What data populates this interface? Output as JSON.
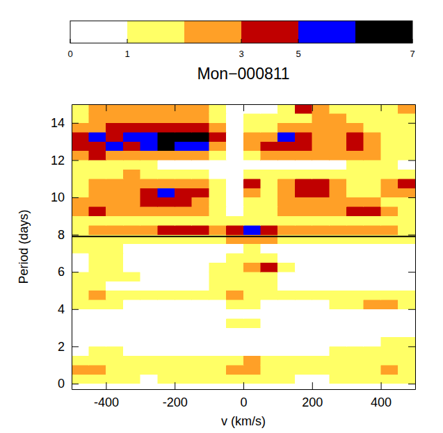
{
  "chart_data": {
    "type": "heatmap",
    "title": "Mon−000811",
    "x_label": "v (km/s)",
    "y_label": "Period (days)",
    "xlim": [
      -500,
      500
    ],
    "ylim": [
      -0.3,
      15
    ],
    "xticks": [
      -400,
      -200,
      0,
      200,
      400
    ],
    "yticks": [
      0,
      2,
      4,
      6,
      8,
      10,
      12,
      14
    ],
    "hline": 7.9,
    "x": [
      -475,
      -425,
      -375,
      -325,
      -275,
      -225,
      -175,
      -125,
      -75,
      -25,
      25,
      75,
      125,
      175,
      225,
      275,
      325,
      375,
      425,
      475
    ],
    "y": [
      0.25,
      0.75,
      1.25,
      1.75,
      2.25,
      2.75,
      3.25,
      3.75,
      4.25,
      4.75,
      5.25,
      5.75,
      6.25,
      6.75,
      7.25,
      7.75,
      8.25,
      8.75,
      9.25,
      9.75,
      10.25,
      10.75,
      11.25,
      11.75,
      12.25,
      12.75,
      13.25,
      13.75,
      14.25,
      14.75
    ],
    "z": [
      [
        1.5,
        1.5,
        1.5,
        1.5,
        0.5,
        1.5,
        1.5,
        1.5,
        1.5,
        1.5,
        1.5,
        1.5,
        1.5,
        0.5,
        0.5,
        1.5,
        1.5,
        1.5,
        1.5,
        1.5
      ],
      [
        2.5,
        2.5,
        1.5,
        1.5,
        1.5,
        1.5,
        1.5,
        1.5,
        1.5,
        2.5,
        2.5,
        1.5,
        1.5,
        1.5,
        1.5,
        1.5,
        1.5,
        1.5,
        2.5,
        1.5
      ],
      [
        1.5,
        1.5,
        1.5,
        1.5,
        1.5,
        1.5,
        1.5,
        1.5,
        1.5,
        1.5,
        2.5,
        1.5,
        1.5,
        1.5,
        1.5,
        1.5,
        1.5,
        1.5,
        1.5,
        1.5
      ],
      [
        0.5,
        1.5,
        1.5,
        0.5,
        0.5,
        0.5,
        0.5,
        0.5,
        0.5,
        0.5,
        0.5,
        0.5,
        0.5,
        0.5,
        0.5,
        1.5,
        1.5,
        1.5,
        1.5,
        1.5
      ],
      [
        0.5,
        0.5,
        0.5,
        0.5,
        0.5,
        0.5,
        0.5,
        0.5,
        0.5,
        0.5,
        0.5,
        0.5,
        0.5,
        0.5,
        0.5,
        0.5,
        0.5,
        0.5,
        1.5,
        1.5
      ],
      [
        0.5,
        0.5,
        0.5,
        0.5,
        0.5,
        0.5,
        0.5,
        0.5,
        0.5,
        0.5,
        0.5,
        0.5,
        0.5,
        0.5,
        0.5,
        0.5,
        0.5,
        0.5,
        0.5,
        0.5
      ],
      [
        0.5,
        0.5,
        0.5,
        0.5,
        0.5,
        0.5,
        0.5,
        0.5,
        0.5,
        1.5,
        1.5,
        0.5,
        0.5,
        0.5,
        0.5,
        0.5,
        0.5,
        0.5,
        0.5,
        0.5
      ],
      [
        0.5,
        0.5,
        0.5,
        0.5,
        0.5,
        0.5,
        0.5,
        0.5,
        0.5,
        0.5,
        0.5,
        0.5,
        0.5,
        0.5,
        0.5,
        0.5,
        0.5,
        0.5,
        0.5,
        0.5
      ],
      [
        1.5,
        1.5,
        1.5,
        0.5,
        0.5,
        0.5,
        0.5,
        0.5,
        0.5,
        1.5,
        1.5,
        0.5,
        0.5,
        0.5,
        0.5,
        1.5,
        1.5,
        2.5,
        2.5,
        1.5
      ],
      [
        1.5,
        2.5,
        1.5,
        1.5,
        1.5,
        1.5,
        1.5,
        1.5,
        1.5,
        2.5,
        1.5,
        1.5,
        1.5,
        1.5,
        1.5,
        1.5,
        1.5,
        1.5,
        1.5,
        1.5
      ],
      [
        1.5,
        1.5,
        0.5,
        0.5,
        0.5,
        0.5,
        0.5,
        0.5,
        1.5,
        1.5,
        1.5,
        1.5,
        0.5,
        0.5,
        0.5,
        0.5,
        0.5,
        0.5,
        0.5,
        0.5
      ],
      [
        1.5,
        1.5,
        1.5,
        1.5,
        0.5,
        0.5,
        0.5,
        0.5,
        1.5,
        1.5,
        1.5,
        1.5,
        0.5,
        0.5,
        0.5,
        0.5,
        0.5,
        0.5,
        0.5,
        0.5
      ],
      [
        0.5,
        1.5,
        1.5,
        0.5,
        0.5,
        0.5,
        0.5,
        0.5,
        1.5,
        1.5,
        2.5,
        4,
        1.5,
        0.5,
        0.5,
        0.5,
        0.5,
        0.5,
        0.5,
        0.5
      ],
      [
        0.5,
        1.5,
        1.5,
        0.5,
        0.5,
        0.5,
        0.5,
        0.5,
        0.5,
        1.5,
        1.5,
        1.5,
        0.5,
        0.5,
        0.5,
        0.5,
        0.5,
        0.5,
        0.5,
        0.5
      ],
      [
        1.5,
        1.5,
        1.5,
        0.5,
        0.5,
        0.5,
        0.5,
        0.5,
        0.5,
        0.5,
        1.5,
        0.5,
        0.5,
        0.5,
        0.5,
        0.5,
        0.5,
        0.5,
        0.5,
        0.5
      ],
      [
        1.5,
        1.5,
        1.5,
        1.5,
        1.5,
        1.5,
        1.5,
        1.5,
        1.5,
        2.5,
        2.5,
        2.5,
        1.5,
        1.5,
        1.5,
        1.5,
        1.5,
        1.5,
        1.5,
        1.5
      ],
      [
        1.5,
        2.5,
        2.5,
        2.5,
        2.5,
        4,
        4,
        4,
        2.5,
        4,
        5.5,
        4,
        2.5,
        2.5,
        2.5,
        2.5,
        2.5,
        2.5,
        2.5,
        1.5
      ],
      [
        1.5,
        1.5,
        1.5,
        1.5,
        1.5,
        1.5,
        1.5,
        1.5,
        1.5,
        1.5,
        1.5,
        1.5,
        1.5,
        1.5,
        1.5,
        1.5,
        1.5,
        1.5,
        1.5,
        1.5
      ],
      [
        2.5,
        4,
        2.5,
        2.5,
        2.5,
        2.5,
        2.5,
        2.5,
        1.5,
        0.5,
        1.5,
        1.5,
        2.5,
        2.5,
        2.5,
        2.5,
        4,
        4,
        2.5,
        1.5
      ],
      [
        2.5,
        2.5,
        2.5,
        2.5,
        4,
        4,
        4,
        2.5,
        1.5,
        0.5,
        1.5,
        1.5,
        2.5,
        2.5,
        2.5,
        2.5,
        2.5,
        2.5,
        1.5,
        1.5
      ],
      [
        1.5,
        2.5,
        2.5,
        2.5,
        4,
        5.5,
        4,
        4,
        1.5,
        0.5,
        2.5,
        1.5,
        2.5,
        4,
        4,
        2.5,
        1.5,
        1.5,
        2.5,
        2.5
      ],
      [
        1.5,
        2.5,
        2.5,
        2.5,
        2.5,
        2.5,
        2.5,
        2.5,
        1.5,
        0.5,
        4,
        1.5,
        2.5,
        4,
        4,
        2.5,
        1.5,
        1.5,
        2.5,
        4
      ],
      [
        1.5,
        1.5,
        1.5,
        2.5,
        1.5,
        1.5,
        1.5,
        1.5,
        0.5,
        0.5,
        1.5,
        1.5,
        1.5,
        1.5,
        1.5,
        1.5,
        1.5,
        1.5,
        1.5,
        1.5
      ],
      [
        1.5,
        1.5,
        1.5,
        1.5,
        1.5,
        0.5,
        0.5,
        0.5,
        0.5,
        0.5,
        0.5,
        0.5,
        0.5,
        0.5,
        0.5,
        0.5,
        1.5,
        1.5,
        1.5,
        0.5
      ],
      [
        2.5,
        4,
        2.5,
        2.5,
        2.5,
        2.5,
        2.5,
        2.5,
        1.5,
        0.5,
        1.5,
        2.5,
        2.5,
        2.5,
        2.5,
        2.5,
        2.5,
        2.5,
        1.5,
        1.5
      ],
      [
        4,
        4,
        5.5,
        4,
        5.5,
        6.5,
        5.5,
        5.5,
        2.5,
        0.5,
        2.5,
        4,
        4,
        4,
        2.5,
        2.5,
        4,
        2.5,
        1.5,
        1.5
      ],
      [
        4,
        5.5,
        4,
        5.5,
        5.5,
        6.5,
        6.5,
        6.5,
        4,
        0.5,
        2.5,
        2.5,
        5.5,
        4,
        2.5,
        2.5,
        4,
        2.5,
        1.5,
        1.5
      ],
      [
        2.5,
        2.5,
        4,
        4,
        4,
        4,
        4,
        4,
        2.5,
        0.5,
        1.5,
        1.5,
        2.5,
        2.5,
        2.5,
        2.5,
        2.5,
        1.5,
        1.5,
        1.5
      ],
      [
        1.5,
        2.5,
        2.5,
        2.5,
        2.5,
        2.5,
        2.5,
        2.5,
        1.5,
        0.5,
        1.5,
        1.5,
        1.5,
        1.5,
        2.5,
        2.5,
        1.5,
        1.5,
        1.5,
        1.5
      ],
      [
        1.5,
        2.5,
        2.5,
        2.5,
        2.5,
        2.5,
        2.5,
        2.5,
        1.5,
        0.5,
        0.5,
        0.5,
        1.5,
        4,
        2.5,
        1.5,
        1.5,
        1.5,
        1.5,
        2.5
      ]
    ],
    "colorbar": {
      "levels": [
        0,
        1,
        2,
        3,
        5,
        6,
        7
      ],
      "colors": [
        "#ffffff",
        "#ffff66",
        "#ffa027",
        "#c00000",
        "#0000ff",
        "#000000"
      ],
      "ticks": [
        0,
        1,
        3,
        5,
        7
      ]
    }
  }
}
